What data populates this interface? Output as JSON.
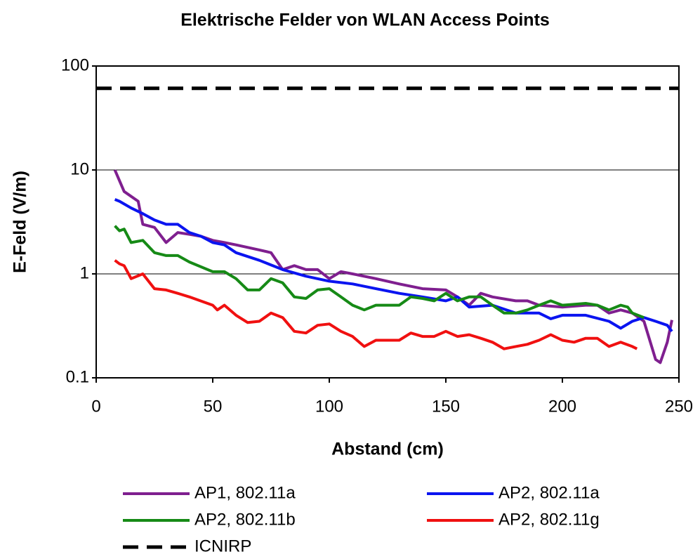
{
  "chart_data": {
    "type": "line",
    "title": "Elektrische Felder von WLAN Access Points",
    "xlabel": "Abstand (cm)",
    "ylabel": "E-Feld (V/m)",
    "xlim": [
      0,
      250
    ],
    "xticks": [
      0,
      50,
      100,
      150,
      200,
      250
    ],
    "ylim": [
      0.1,
      100
    ],
    "yticks": [
      0.1,
      1,
      10,
      100
    ],
    "ylog": true,
    "grid": true,
    "series": [
      {
        "name": "AP1, 802.11a",
        "color": "#7f1f8f",
        "dash": false,
        "x": [
          8,
          12,
          18,
          20,
          25,
          30,
          35,
          40,
          45,
          50,
          55,
          60,
          70,
          75,
          80,
          85,
          90,
          95,
          100,
          105,
          110,
          120,
          130,
          140,
          150,
          155,
          160,
          165,
          170,
          180,
          185,
          190,
          200,
          210,
          215,
          220,
          225,
          230,
          235,
          240,
          242,
          245,
          247
        ],
        "values": [
          10,
          6.2,
          5,
          3,
          2.8,
          2,
          2.5,
          2.4,
          2.3,
          2.1,
          2.0,
          1.9,
          1.7,
          1.6,
          1.1,
          1.2,
          1.1,
          1.1,
          0.9,
          1.05,
          1.0,
          0.9,
          0.8,
          0.72,
          0.7,
          0.6,
          0.5,
          0.65,
          0.6,
          0.55,
          0.55,
          0.5,
          0.48,
          0.5,
          0.5,
          0.42,
          0.45,
          0.42,
          0.35,
          0.15,
          0.14,
          0.22,
          0.36
        ]
      },
      {
        "name": "AP2, 802.11a",
        "color": "#0a14f0",
        "dash": false,
        "x": [
          8,
          10,
          15,
          20,
          25,
          30,
          35,
          40,
          45,
          50,
          55,
          60,
          70,
          80,
          90,
          100,
          110,
          120,
          130,
          140,
          150,
          155,
          160,
          170,
          180,
          190,
          195,
          200,
          210,
          220,
          225,
          230,
          235,
          240,
          245,
          247
        ],
        "values": [
          5.2,
          5,
          4.3,
          3.8,
          3.3,
          3.0,
          3.0,
          2.5,
          2.3,
          2.0,
          1.9,
          1.6,
          1.35,
          1.1,
          0.95,
          0.85,
          0.8,
          0.72,
          0.65,
          0.6,
          0.55,
          0.6,
          0.48,
          0.5,
          0.42,
          0.42,
          0.37,
          0.4,
          0.4,
          0.35,
          0.3,
          0.35,
          0.38,
          0.35,
          0.32,
          0.28
        ]
      },
      {
        "name": "AP2, 802.11b",
        "color": "#168a16",
        "dash": false,
        "x": [
          8,
          10,
          12,
          15,
          20,
          25,
          30,
          35,
          40,
          50,
          55,
          60,
          65,
          70,
          75,
          80,
          85,
          90,
          95,
          100,
          105,
          110,
          115,
          120,
          130,
          135,
          140,
          145,
          150,
          155,
          160,
          165,
          170,
          175,
          180,
          185,
          190,
          195,
          200,
          210,
          215,
          220,
          225,
          228,
          230,
          235
        ],
        "values": [
          2.9,
          2.6,
          2.7,
          2.0,
          2.1,
          1.6,
          1.5,
          1.5,
          1.3,
          1.05,
          1.05,
          0.9,
          0.7,
          0.7,
          0.9,
          0.82,
          0.6,
          0.58,
          0.7,
          0.72,
          0.6,
          0.5,
          0.45,
          0.5,
          0.5,
          0.6,
          0.58,
          0.55,
          0.65,
          0.55,
          0.6,
          0.6,
          0.5,
          0.42,
          0.42,
          0.45,
          0.5,
          0.55,
          0.5,
          0.52,
          0.5,
          0.45,
          0.5,
          0.48,
          0.42,
          0.38
        ]
      },
      {
        "name": "AP2, 802.11g",
        "color": "#f01010",
        "dash": false,
        "x": [
          8,
          10,
          12,
          15,
          20,
          25,
          30,
          35,
          40,
          50,
          52,
          55,
          60,
          65,
          70,
          75,
          80,
          85,
          90,
          95,
          100,
          105,
          110,
          115,
          120,
          125,
          130,
          135,
          140,
          145,
          150,
          155,
          160,
          165,
          170,
          175,
          180,
          185,
          190,
          195,
          200,
          205,
          210,
          215,
          220,
          225,
          230,
          232
        ],
        "values": [
          1.35,
          1.25,
          1.2,
          0.9,
          1.0,
          0.72,
          0.7,
          0.65,
          0.6,
          0.5,
          0.45,
          0.5,
          0.4,
          0.34,
          0.35,
          0.42,
          0.38,
          0.28,
          0.27,
          0.32,
          0.33,
          0.28,
          0.25,
          0.2,
          0.23,
          0.23,
          0.23,
          0.27,
          0.25,
          0.25,
          0.28,
          0.25,
          0.26,
          0.24,
          0.22,
          0.19,
          0.2,
          0.21,
          0.23,
          0.26,
          0.23,
          0.22,
          0.24,
          0.24,
          0.2,
          0.22,
          0.2,
          0.19
        ]
      },
      {
        "name": "ICNIRP",
        "color": "#000000",
        "dash": true,
        "x": [
          0,
          250
        ],
        "values": [
          61,
          61
        ]
      }
    ]
  }
}
